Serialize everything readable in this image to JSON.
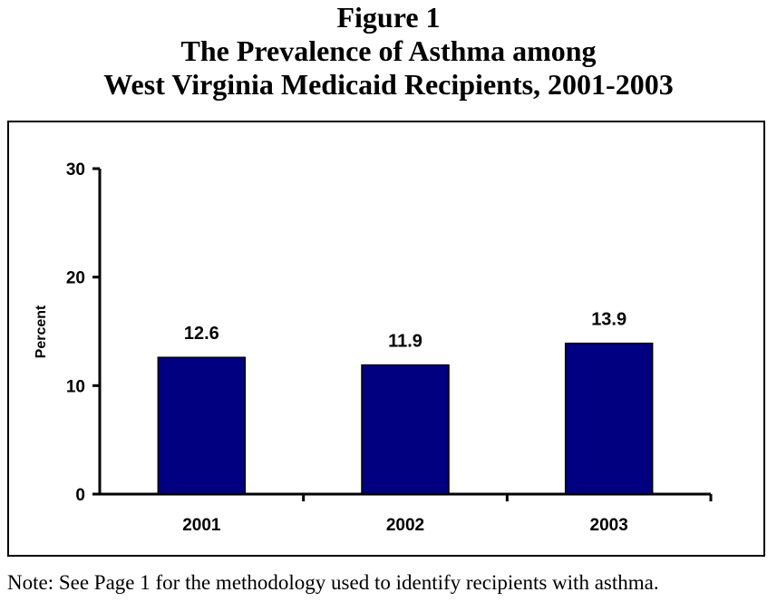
{
  "chart_data": {
    "type": "bar",
    "figure_label": "Figure 1",
    "title_lines": [
      "The Prevalence of Asthma among",
      "West Virginia Medicaid Recipients, 2001-2003"
    ],
    "categories": [
      "2001",
      "2002",
      "2003"
    ],
    "values": [
      12.6,
      11.9,
      13.9
    ],
    "data_labels": [
      "12.6",
      "11.9",
      "13.9"
    ],
    "xlabel": "",
    "ylabel": "Percent",
    "ylim": [
      0,
      30
    ],
    "yticks": [
      0,
      10,
      20,
      30
    ],
    "grid": false,
    "bar_color": "#000080"
  },
  "note": "Note:  See Page 1 for the methodology used to identify recipients with asthma."
}
